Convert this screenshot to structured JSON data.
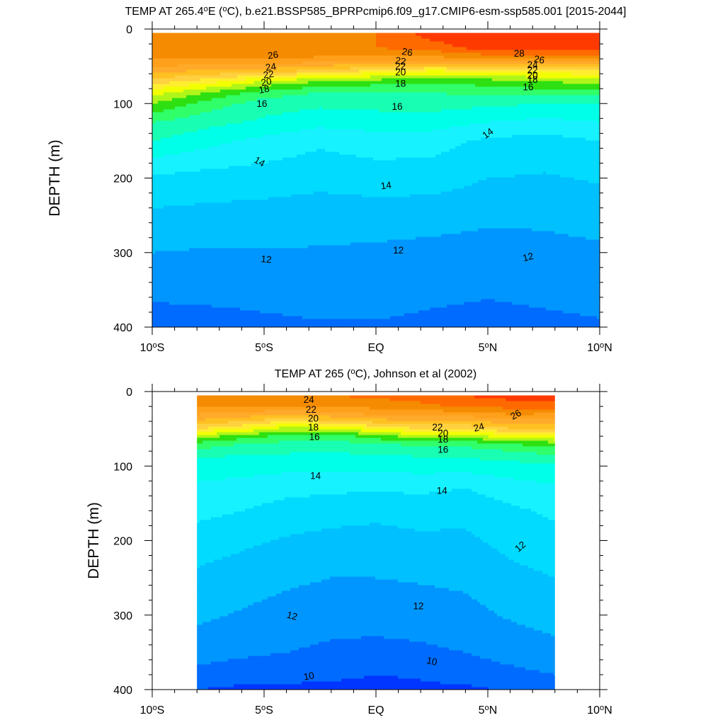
{
  "chart_data": [
    {
      "type": "contour",
      "title_parts": [
        "TEMP AT 265.4",
        "o",
        "E (",
        "o",
        "C), b.e21.BSSP585_BPRPcmip6.f09_g17.CMIP6-esm-ssp585.001 [2015-2044]"
      ],
      "xlabel": "",
      "ylabel": "DEPTH (m)",
      "x_unit": "degrees latitude",
      "y_unit": "m",
      "xlim": [
        -10,
        10
      ],
      "ylim": [
        400,
        0
      ],
      "x_ticks": [
        -10,
        -5,
        0,
        5,
        10
      ],
      "x_tick_labels": [
        {
          "num": "10",
          "deg": "o",
          "hem": "S"
        },
        {
          "num": "5",
          "deg": "o",
          "hem": "S"
        },
        {
          "num": "EQ",
          "deg": "",
          "hem": ""
        },
        {
          "num": "5",
          "deg": "o",
          "hem": "N"
        },
        {
          "num": "10",
          "deg": "o",
          "hem": "N"
        }
      ],
      "y_ticks": [
        0,
        100,
        200,
        300,
        400
      ],
      "y_tick_labels": [
        "0",
        "100",
        "200",
        "300",
        "400"
      ],
      "data_xlim": [
        -10,
        10
      ],
      "data_ylim": [
        5,
        400
      ],
      "field": {
        "x": [
          -10,
          -7.5,
          -5,
          -2.5,
          0,
          2.5,
          5,
          7.5,
          10
        ],
        "depth": [
          5,
          25,
          40,
          55,
          70,
          85,
          100,
          125,
          150,
          200,
          250,
          300,
          350,
          400
        ],
        "temp": [
          [
            26.5,
            27,
            27,
            27,
            27,
            28.5,
            29,
            29,
            29
          ],
          [
            26.3,
            26.5,
            26.8,
            26.8,
            27,
            27.5,
            28.5,
            28.5,
            28.5
          ],
          [
            26,
            26,
            26,
            25.8,
            25.5,
            25.5,
            26,
            26,
            26
          ],
          [
            24.5,
            24,
            23.8,
            23,
            22,
            21.2,
            21.5,
            21.8,
            22
          ],
          [
            22.5,
            21.5,
            20,
            19,
            18.5,
            18.2,
            18.5,
            19,
            19.5
          ],
          [
            20.5,
            19,
            17.5,
            17,
            17,
            17,
            17.3,
            17.5,
            17.5
          ],
          [
            19,
            17.5,
            16.5,
            16.2,
            16.3,
            16.4,
            16.2,
            16,
            16
          ],
          [
            17,
            16.3,
            15.8,
            15.3,
            15.5,
            15.5,
            15,
            14.7,
            15
          ],
          [
            16,
            15.3,
            14.7,
            14.2,
            14.5,
            14.4,
            13.8,
            13.6,
            14
          ],
          [
            13.8,
            13.6,
            13.5,
            13.3,
            13.5,
            13.5,
            13,
            12.9,
            13.1
          ],
          [
            12.8,
            12.7,
            12.6,
            12.5,
            12.5,
            12.4,
            12.2,
            12.2,
            12.4
          ],
          [
            12,
            11.9,
            11.9,
            11.9,
            11.8,
            11.7,
            11.6,
            11.7,
            11.8
          ],
          [
            11.3,
            11.3,
            11.3,
            11.4,
            11.4,
            11.2,
            11.1,
            11.2,
            11.3
          ],
          [
            10.4,
            10.6,
            10.8,
            10.9,
            10.9,
            10.8,
            10.7,
            10.8,
            10.9
          ]
        ]
      },
      "contour_interval": 0.5,
      "contour_levels_range": [
        8.5,
        30
      ],
      "labels": [
        {
          "text": "26",
          "x": -4.6,
          "y": 35,
          "rot": -8
        },
        {
          "text": "24",
          "x": -4.7,
          "y": 51,
          "rot": -8
        },
        {
          "text": "22",
          "x": -4.8,
          "y": 61,
          "rot": -8
        },
        {
          "text": "20",
          "x": -4.9,
          "y": 71,
          "rot": -10
        },
        {
          "text": "18",
          "x": -5.0,
          "y": 81,
          "rot": -10
        },
        {
          "text": "16",
          "x": -5.1,
          "y": 100,
          "rot": 0
        },
        {
          "text": "26",
          "x": 1.4,
          "y": 31,
          "rot": 10
        },
        {
          "text": "22",
          "x": 1.1,
          "y": 43,
          "rot": 10
        },
        {
          "text": "22",
          "x": 1.1,
          "y": 50,
          "rot": 0
        },
        {
          "text": "20",
          "x": 1.1,
          "y": 58,
          "rot": 0
        },
        {
          "text": "18",
          "x": 1.1,
          "y": 73,
          "rot": 0
        },
        {
          "text": "16",
          "x": 0.95,
          "y": 104,
          "rot": 0
        },
        {
          "text": "28",
          "x": 6.4,
          "y": 33,
          "rot": 0
        },
        {
          "text": "26",
          "x": 7.3,
          "y": 41,
          "rot": 10
        },
        {
          "text": "24",
          "x": 7.0,
          "y": 48,
          "rot": 0
        },
        {
          "text": "22",
          "x": 7.0,
          "y": 55,
          "rot": 0
        },
        {
          "text": "20",
          "x": 7.0,
          "y": 62,
          "rot": 0
        },
        {
          "text": "18",
          "x": 7.0,
          "y": 68,
          "rot": 0
        },
        {
          "text": "16",
          "x": 6.8,
          "y": 78,
          "rot": 0
        },
        {
          "text": "14",
          "x": -5.2,
          "y": 178,
          "rot": 30
        },
        {
          "text": "14",
          "x": 0.45,
          "y": 210,
          "rot": -8
        },
        {
          "text": "14",
          "x": 5.0,
          "y": 140,
          "rot": -35
        },
        {
          "text": "12",
          "x": -4.9,
          "y": 309,
          "rot": 5
        },
        {
          "text": "12",
          "x": 1.0,
          "y": 297,
          "rot": 0
        },
        {
          "text": "12",
          "x": 6.8,
          "y": 306,
          "rot": -15
        }
      ]
    },
    {
      "type": "contour",
      "title_parts": [
        "TEMP AT 265 (",
        "o",
        "C), Johnson et al (2002)"
      ],
      "xlabel": "",
      "ylabel": "DEPTH (m)",
      "x_unit": "degrees latitude",
      "y_unit": "m",
      "xlim": [
        -10,
        10
      ],
      "ylim": [
        400,
        0
      ],
      "x_ticks": [
        -10,
        -5,
        0,
        5,
        10
      ],
      "x_tick_labels": [
        {
          "num": "10",
          "deg": "o",
          "hem": "S"
        },
        {
          "num": "5",
          "deg": "o",
          "hem": "S"
        },
        {
          "num": "EQ",
          "deg": "",
          "hem": ""
        },
        {
          "num": "5",
          "deg": "o",
          "hem": "N"
        },
        {
          "num": "10",
          "deg": "o",
          "hem": "N"
        }
      ],
      "y_ticks": [
        0,
        100,
        200,
        300,
        400
      ],
      "y_tick_labels": [
        "0",
        "100",
        "200",
        "300",
        "400"
      ],
      "data_xlim": [
        -8,
        8
      ],
      "data_ylim": [
        5,
        400
      ],
      "field": {
        "x": [
          -8,
          -6,
          -4,
          -2,
          0,
          2,
          4,
          6,
          8
        ],
        "depth": [
          5,
          20,
          35,
          50,
          60,
          70,
          85,
          100,
          130,
          160,
          200,
          250,
          300,
          350,
          380,
          400
        ],
        "temp": [
          [
            26.5,
            26.5,
            27,
            27,
            27.3,
            27.5,
            28,
            28.5,
            28.8
          ],
          [
            26,
            26,
            26,
            26,
            26.3,
            26.7,
            27.2,
            27.3,
            27.3
          ],
          [
            24.5,
            24,
            23,
            23.8,
            24.5,
            24.5,
            24.6,
            25.4,
            25.2
          ],
          [
            22,
            21,
            19.5,
            19.8,
            21,
            22,
            22,
            22.8,
            23
          ],
          [
            19.5,
            18.5,
            17.7,
            17.5,
            18.5,
            19.5,
            19.5,
            20.5,
            21
          ],
          [
            17.7,
            17,
            16.7,
            16.5,
            17,
            17.2,
            17.3,
            18,
            18.5
          ],
          [
            16.2,
            16,
            15.9,
            15.8,
            16,
            16.1,
            16.2,
            16.5,
            17
          ],
          [
            15.5,
            15.4,
            15.3,
            15.2,
            15.3,
            15.4,
            15.4,
            15.6,
            15.8
          ],
          [
            14.8,
            14.6,
            14.3,
            14.2,
            14.1,
            14.2,
            14,
            14.5,
            14.8
          ],
          [
            14.3,
            14,
            13.6,
            13.4,
            13.3,
            13.4,
            13.3,
            13.8,
            14.2
          ],
          [
            13.5,
            13.2,
            12.9,
            12.7,
            12.6,
            12.8,
            12.8,
            13.3,
            13.6
          ],
          [
            12.8,
            12.5,
            12.2,
            12,
            12,
            12.1,
            12.2,
            12.7,
            13
          ],
          [
            12.2,
            11.9,
            11.6,
            11.4,
            11.4,
            11.5,
            11.7,
            12.1,
            12.4
          ],
          [
            11.5,
            11.2,
            11,
            10.8,
            10.7,
            10.8,
            11,
            11.4,
            11.7
          ],
          [
            10.6,
            10.4,
            10.3,
            10.2,
            10,
            10.1,
            10.4,
            10.7,
            11
          ],
          [
            10,
            9.8,
            9.8,
            9.7,
            9.7,
            9.8,
            9.8,
            10.1,
            10.2
          ]
        ]
      },
      "contour_interval": 0.5,
      "contour_levels_range": [
        8.5,
        30
      ],
      "labels": [
        {
          "text": "24",
          "x": -3.0,
          "y": 11,
          "rot": 0
        },
        {
          "text": "22",
          "x": -2.9,
          "y": 24,
          "rot": 0
        },
        {
          "text": "20",
          "x": -2.8,
          "y": 36,
          "rot": 0
        },
        {
          "text": "18",
          "x": -2.8,
          "y": 48,
          "rot": 0
        },
        {
          "text": "16",
          "x": -2.75,
          "y": 61,
          "rot": 0
        },
        {
          "text": "14",
          "x": -2.7,
          "y": 113,
          "rot": 0
        },
        {
          "text": "22",
          "x": 2.75,
          "y": 48,
          "rot": 0
        },
        {
          "text": "20",
          "x": 3.0,
          "y": 56,
          "rot": 0
        },
        {
          "text": "18",
          "x": 3.0,
          "y": 64,
          "rot": 0
        },
        {
          "text": "16",
          "x": 3.0,
          "y": 78,
          "rot": 0
        },
        {
          "text": "24",
          "x": 4.6,
          "y": 48,
          "rot": -15
        },
        {
          "text": "26",
          "x": 6.25,
          "y": 31,
          "rot": -30
        },
        {
          "text": "14",
          "x": 2.95,
          "y": 133,
          "rot": 0
        },
        {
          "text": "12",
          "x": 6.45,
          "y": 208,
          "rot": -40
        },
        {
          "text": "12",
          "x": 1.9,
          "y": 288,
          "rot": 0
        },
        {
          "text": "12",
          "x": -3.75,
          "y": 301,
          "rot": 15
        },
        {
          "text": "10",
          "x": 2.5,
          "y": 362,
          "rot": 12
        },
        {
          "text": "10",
          "x": -3.0,
          "y": 382,
          "rot": -10
        }
      ]
    }
  ],
  "colorscale": [
    {
      "t": 9,
      "c": "#0036ff"
    },
    {
      "t": 10,
      "c": "#006bff"
    },
    {
      "t": 11,
      "c": "#0096ff"
    },
    {
      "t": 12,
      "c": "#00c0ff"
    },
    {
      "t": 13,
      "c": "#00dbff"
    },
    {
      "t": 14,
      "c": "#16f2ff"
    },
    {
      "t": 15,
      "c": "#00ffe8"
    },
    {
      "t": 16,
      "c": "#18ffb3"
    },
    {
      "t": 17,
      "c": "#30ff6a"
    },
    {
      "t": 18,
      "c": "#2ee011"
    },
    {
      "t": 19,
      "c": "#b0f519"
    },
    {
      "t": 20,
      "c": "#f2ff00"
    },
    {
      "t": 21,
      "c": "#ffee30"
    },
    {
      "t": 22,
      "c": "#ffd040"
    },
    {
      "t": 23,
      "c": "#ffc022"
    },
    {
      "t": 24,
      "c": "#ffaa2a"
    },
    {
      "t": 25,
      "c": "#ff9f1a"
    },
    {
      "t": 26,
      "c": "#f58b00"
    },
    {
      "t": 27,
      "c": "#ff6a00"
    },
    {
      "t": 28,
      "c": "#ff3a00"
    },
    {
      "t": 29,
      "c": "#ff0000"
    },
    {
      "t": 30,
      "c": "#e00000"
    }
  ]
}
